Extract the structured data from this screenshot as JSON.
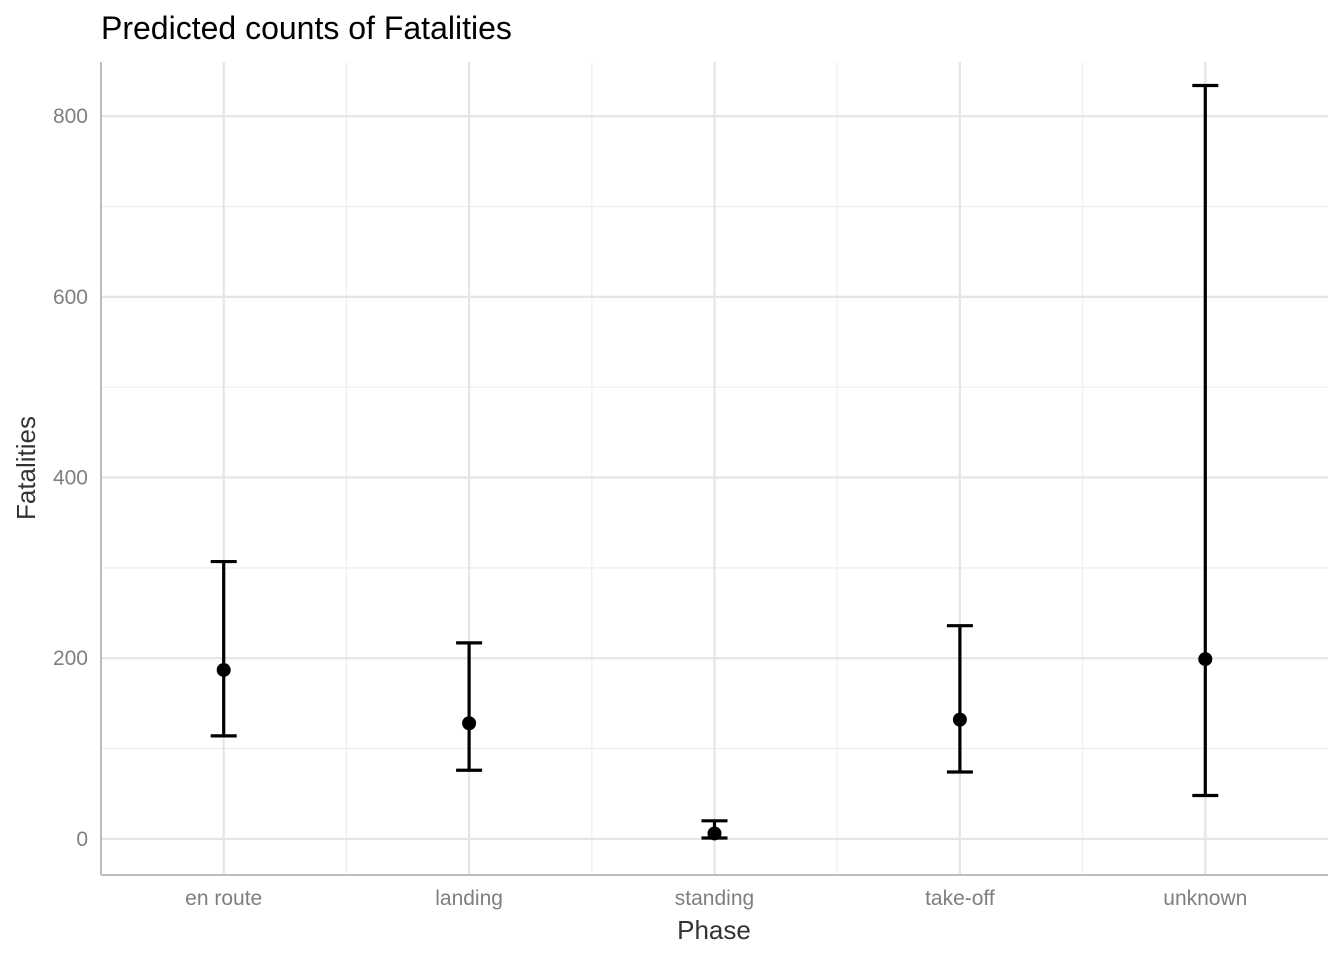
{
  "chart_data": {
    "type": "scatter",
    "title": "Predicted counts of Fatalities",
    "xlabel": "Phase",
    "ylabel": "Fatalities",
    "categories": [
      "en route",
      "landing",
      "standing",
      "take-off",
      "unknown"
    ],
    "values": [
      187,
      128,
      6,
      132,
      199
    ],
    "lower": [
      114,
      76,
      1,
      74,
      48
    ],
    "upper": [
      307,
      217,
      20,
      236,
      834
    ],
    "ylim": [
      -40,
      860
    ],
    "yticks": [
      0,
      200,
      400,
      600,
      800
    ],
    "grid": true,
    "legend": "none"
  }
}
